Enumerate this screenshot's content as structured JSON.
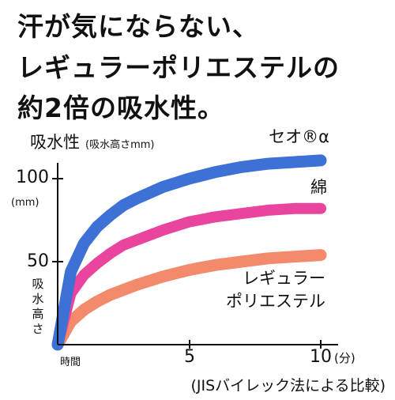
{
  "headline": {
    "line1": "汗が気にならない、",
    "line2": "レギュラーポリエステルの",
    "line3": "約2倍の吸水性。"
  },
  "chart_data": {
    "type": "line",
    "ylabel_main": "吸水性",
    "ylabel_sub": "(吸水高さmm)",
    "ylabel_side": "吸水高さ",
    "y_unit": "(mm)",
    "y_ticks": [
      "100",
      "50"
    ],
    "y_tick_values": [
      100,
      50
    ],
    "x_origin_label": "時間",
    "x_ticks": [
      "5",
      "10"
    ],
    "x_tick_values": [
      5,
      10
    ],
    "x_unit": "(分)",
    "footnote": "(JISバイレック法による比較)",
    "xlim": [
      0,
      10
    ],
    "ylim": [
      0,
      125
    ],
    "series": [
      {
        "name": "セオ®α",
        "color": "#3d71d6",
        "x": [
          0,
          0.5,
          1,
          1.5,
          2,
          2.5,
          3,
          4,
          5,
          6,
          7,
          8,
          9,
          10
        ],
        "y": [
          0,
          44,
          61,
          71,
          78,
          84,
          88,
          95,
          100,
          104,
          107,
          109,
          110,
          111
        ]
      },
      {
        "name": "綿",
        "color": "#e9449e",
        "x": [
          0,
          0.5,
          1,
          1.5,
          2,
          2.5,
          3,
          4,
          5,
          6,
          7,
          8,
          9,
          10
        ],
        "y": [
          0,
          31,
          42,
          49,
          55,
          60,
          63,
          69,
          74,
          77,
          79,
          81,
          82,
          82
        ]
      },
      {
        "name": "レギュラーポリエステル",
        "color": "#f38a6c",
        "x": [
          0,
          0.5,
          1,
          1.5,
          2,
          2.5,
          3,
          4,
          5,
          6,
          7,
          8,
          9,
          10
        ],
        "y": [
          0,
          14,
          21,
          26,
          30,
          33,
          36,
          41,
          45,
          48,
          50,
          52,
          53,
          54
        ]
      }
    ]
  }
}
